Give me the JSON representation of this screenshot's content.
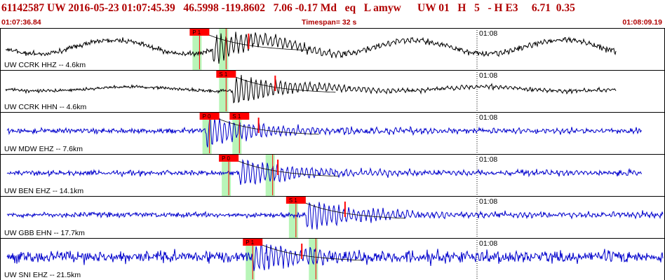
{
  "header": {
    "title": "61142587 UW 2016-05-23 01:07:45.39   46.5998 -119.8602   7.06 -0.17 Md   eq   L amyw      UW 01   H   5   - H E3     6.71  0.35",
    "start_time": "01:07:36.84",
    "timespan": "Timespan=  32 s",
    "end_time": "01:08:09.19"
  },
  "time_tick_label": "01:08",
  "colors": {
    "header_text": "#b00000",
    "trace_black": "#000000",
    "trace_blue": "#0000cc",
    "pick_box": "#ff0000",
    "pick_window": "#b8f5b8",
    "pick_line": "#ff0000"
  },
  "traces": [
    {
      "label": "UW CCRK HHZ -- 4.6km",
      "color": "black",
      "style": "long_period",
      "picks": [
        {
          "label": "P 1",
          "t": 0.3
        },
        {
          "label": "",
          "t": 0.34
        }
      ],
      "onset": 0.32
    },
    {
      "label": "UW CCRK HHN -- 4.6km",
      "color": "black",
      "style": "medium",
      "picks": [
        {
          "label": "S 1",
          "t": 0.34
        }
      ],
      "onset": 0.35
    },
    {
      "label": "UW MDW EHZ -- 7.6km",
      "color": "blue",
      "style": "event",
      "picks": [
        {
          "label": "P 0",
          "t": 0.315
        },
        {
          "label": "S 1",
          "t": 0.36
        }
      ],
      "onset": 0.31
    },
    {
      "label": "UW BEN EHZ -- 14.1km",
      "color": "blue",
      "style": "event",
      "picks": [
        {
          "label": "P 0",
          "t": 0.344
        },
        {
          "label": "",
          "t": 0.41
        }
      ],
      "onset": 0.36
    },
    {
      "label": "UW GBB EHN -- 17.7km",
      "color": "blue",
      "style": "event",
      "picks": [
        {
          "label": "S 1",
          "t": 0.445
        }
      ],
      "onset": 0.46
    },
    {
      "label": "UW SNI EHZ -- 21.5km",
      "color": "blue",
      "style": "noisy",
      "picks": [
        {
          "label": "P 1",
          "t": 0.38
        },
        {
          "label": "",
          "t": 0.475
        }
      ],
      "onset": 0.38
    }
  ]
}
